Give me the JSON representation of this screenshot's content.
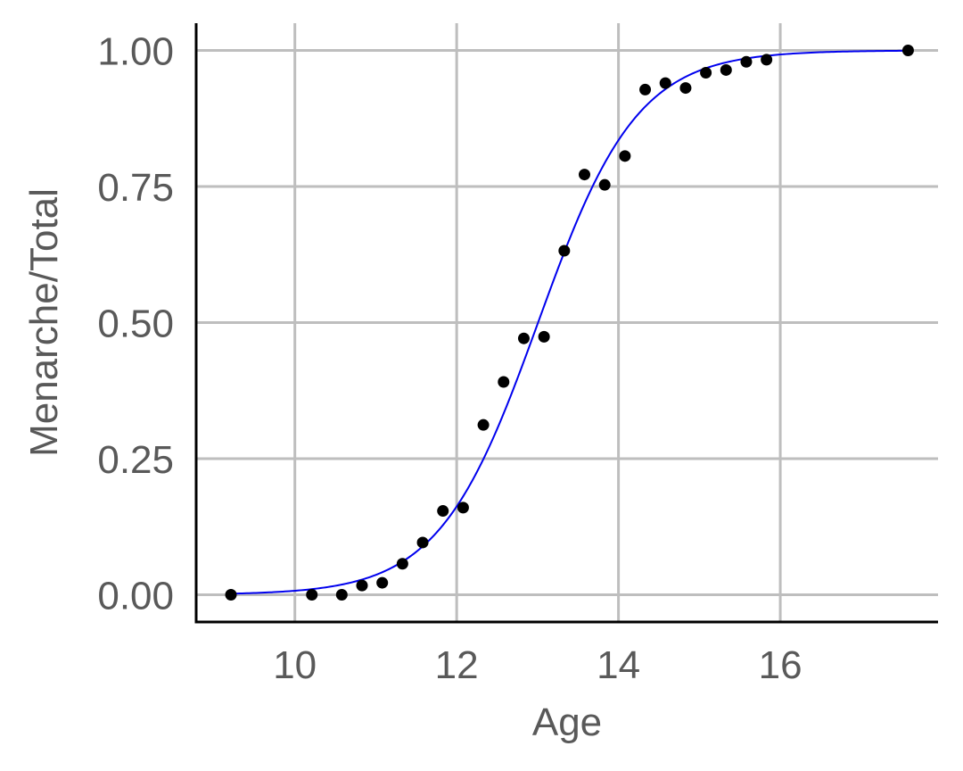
{
  "chart_data": {
    "type": "scatter",
    "title": "",
    "xlabel": "Age",
    "ylabel": "Menarche/Total",
    "xlim": [
      8.78,
      17.95
    ],
    "ylim": [
      -0.05,
      1.05
    ],
    "x_ticks": [
      10,
      12,
      14,
      16
    ],
    "x_tick_labels": [
      "10",
      "12",
      "14",
      "16"
    ],
    "y_ticks": [
      0,
      0.25,
      0.5,
      0.75,
      1
    ],
    "y_tick_labels": [
      "0.00",
      "0.25",
      "0.50",
      "0.75",
      "1.00"
    ],
    "grid": true,
    "colors": {
      "points": "#000000",
      "fit_line": "#0000ee",
      "grid": "#bebebe",
      "axis": "#000000",
      "text": "#595959"
    },
    "series": [
      {
        "kind": "points",
        "x": [
          9.21,
          10.21,
          10.58,
          10.83,
          11.08,
          11.33,
          11.58,
          11.83,
          12.08,
          12.33,
          12.58,
          12.83,
          13.08,
          13.33,
          13.58,
          13.83,
          14.08,
          14.33,
          14.58,
          14.83,
          15.08,
          15.33,
          15.58,
          15.83,
          17.58
        ],
        "y": [
          0.0,
          0.0,
          0.0,
          0.017,
          0.022,
          0.057,
          0.096,
          0.154,
          0.16,
          0.312,
          0.391,
          0.471,
          0.474,
          0.632,
          0.772,
          0.753,
          0.806,
          0.928,
          0.94,
          0.931,
          0.959,
          0.964,
          0.979,
          0.983,
          1.0
        ]
      },
      {
        "kind": "logistic-fit",
        "x_range": [
          9.21,
          17.58
        ],
        "intercept": -21.226,
        "slope": 1.632
      }
    ]
  }
}
